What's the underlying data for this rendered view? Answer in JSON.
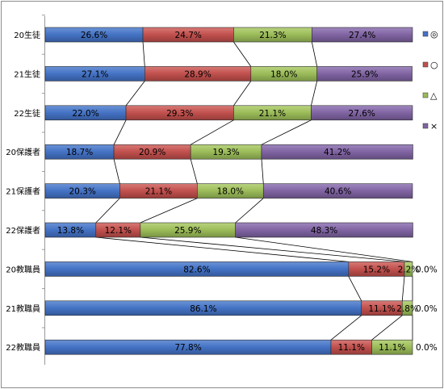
{
  "chart_data": {
    "type": "bar",
    "stacked": "100%",
    "orientation": "horizontal",
    "categories": [
      "20生徒",
      "21生徒",
      "22生徒",
      "20保護者",
      "21保護者",
      "22保護者",
      "20教職員",
      "21教職員",
      "22教職員"
    ],
    "series": [
      {
        "name": "◎",
        "values": [
          26.6,
          27.1,
          22.0,
          18.7,
          20.3,
          13.8,
          82.6,
          86.1,
          77.8
        ]
      },
      {
        "name": "○",
        "values": [
          24.7,
          28.9,
          29.3,
          20.9,
          21.1,
          12.1,
          15.2,
          11.1,
          11.1
        ]
      },
      {
        "name": "△",
        "values": [
          21.3,
          18.0,
          21.1,
          19.3,
          18.0,
          25.9,
          2.2,
          2.8,
          11.1
        ]
      },
      {
        "name": "×",
        "values": [
          27.4,
          25.9,
          27.6,
          41.2,
          40.6,
          48.3,
          0.0,
          0.0,
          0.0
        ]
      }
    ],
    "value_labels": [
      [
        "26.6%",
        "24.7%",
        "21.3%",
        "27.4%"
      ],
      [
        "27.1%",
        "28.9%",
        "18.0%",
        "25.9%"
      ],
      [
        "22.0%",
        "29.3%",
        "21.1%",
        "27.6%"
      ],
      [
        "18.7%",
        "20.9%",
        "19.3%",
        "41.2%"
      ],
      [
        "20.3%",
        "21.1%",
        "18.0%",
        "40.6%"
      ],
      [
        "13.8%",
        "12.1%",
        "25.9%",
        "48.3%"
      ],
      [
        "82.6%",
        "15.2%",
        "2.2%",
        "0.0%"
      ],
      [
        "86.1%",
        "11.1%",
        "2.8%",
        "0.0%"
      ],
      [
        "77.8%",
        "11.1%",
        "11.1%",
        "0.0%"
      ]
    ],
    "colors": [
      "#4472c4",
      "#c0504d",
      "#9bbb59",
      "#8064a2"
    ],
    "series_lines": true,
    "legend": "right",
    "xlim": [
      0,
      100
    ],
    "grid": false
  }
}
